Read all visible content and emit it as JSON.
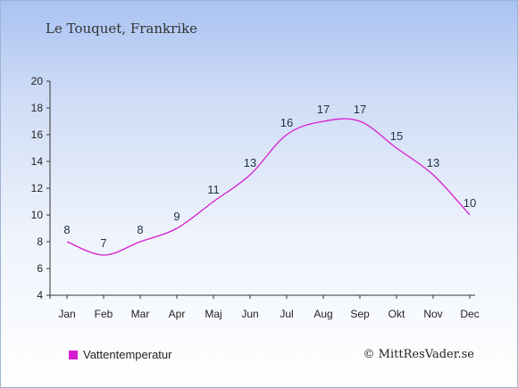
{
  "title": "Le Touquet, Frankrike",
  "credit": "© MittResVader.se",
  "colors": {
    "series": "#d61cd0",
    "axis": "#333333"
  },
  "chart_data": {
    "type": "line",
    "title": "Le Touquet, Frankrike",
    "categories": [
      "Jan",
      "Feb",
      "Mar",
      "Apr",
      "Maj",
      "Jun",
      "Jul",
      "Aug",
      "Sep",
      "Okt",
      "Nov",
      "Dec"
    ],
    "series": [
      {
        "name": "Vattentemperatur",
        "values": [
          8,
          7,
          8,
          9,
          11,
          13,
          16,
          17,
          17,
          15,
          13,
          10
        ]
      }
    ],
    "ylim": [
      4,
      20
    ],
    "yticks": [
      "4",
      "6",
      "8",
      "10",
      "12",
      "14",
      "16",
      "18",
      "20"
    ],
    "grid": false,
    "legend": "bottom-left"
  }
}
